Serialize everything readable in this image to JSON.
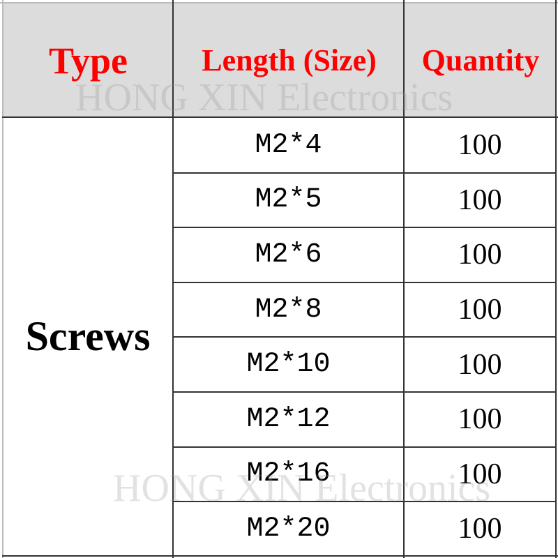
{
  "headers": {
    "type": "Type",
    "length": "Length (Size)",
    "quantity": "Quantity"
  },
  "type_label": "Screws",
  "rows": [
    {
      "size": "M2*4",
      "quantity": "100"
    },
    {
      "size": "M2*5",
      "quantity": "100"
    },
    {
      "size": "M2*6",
      "quantity": "100"
    },
    {
      "size": "M2*8",
      "quantity": "100"
    },
    {
      "size": "M2*10",
      "quantity": "100"
    },
    {
      "size": "M2*12",
      "quantity": "100"
    },
    {
      "size": "M2*16",
      "quantity": "100"
    },
    {
      "size": "M2*20",
      "quantity": "100"
    }
  ],
  "watermark": "HONG XIN Electronics",
  "colors": {
    "header_text": "#ff0000",
    "header_bg": "#dcdcdc"
  }
}
